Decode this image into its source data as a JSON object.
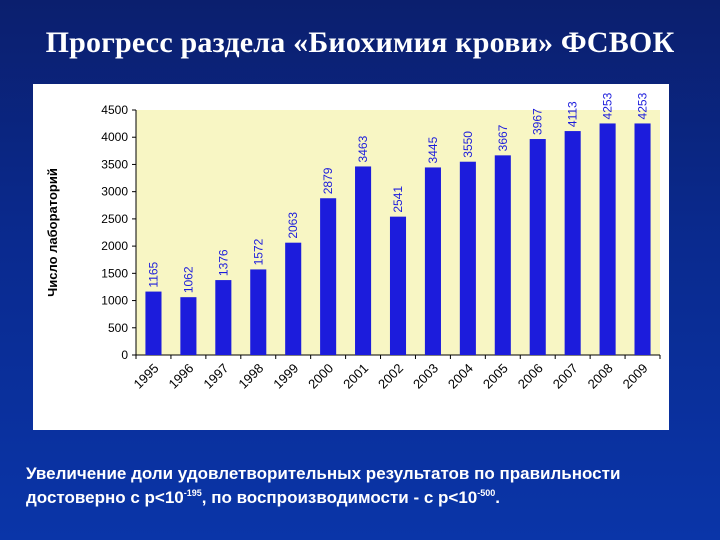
{
  "slide": {
    "title": "Прогресс раздела «Биохимия крови» ФСВОК"
  },
  "caption": {
    "part1": "Увеличение доли удовлетворительных результатов по правильности достоверно с p<10",
    "exp1": "-195",
    "part2": ", по воспроизводимости - с p<10",
    "exp2": "-500",
    "part3": "."
  },
  "chart_data": {
    "type": "bar",
    "ylabel": "Число лабораторий",
    "ylim": [
      0,
      4500
    ],
    "yticks": [
      0,
      500,
      1000,
      1500,
      2000,
      2500,
      3000,
      3500,
      4000,
      4500
    ],
    "grid": false,
    "legend": "none",
    "categories": [
      "1995",
      "1996",
      "1997",
      "1998",
      "1999",
      "2000",
      "2001",
      "2002",
      "2003",
      "2004",
      "2005",
      "2006",
      "2007",
      "2008",
      "2009"
    ],
    "values": [
      1165,
      1062,
      1376,
      1572,
      2063,
      2879,
      3463,
      2541,
      3445,
      3550,
      3667,
      3967,
      4113,
      4253,
      4253
    ],
    "data_labels": [
      "1165",
      "1062",
      "1376",
      "1572",
      "2063",
      "2879",
      "3463",
      "2541",
      "3445",
      "3550",
      "3667",
      "3967",
      "4113",
      "4253",
      "4253"
    ],
    "colors": {
      "bar": "#1c1cdc",
      "plot_background": "#f8f6c4",
      "data_label": "#1c1cdc",
      "axis_text": "#000000"
    }
  }
}
